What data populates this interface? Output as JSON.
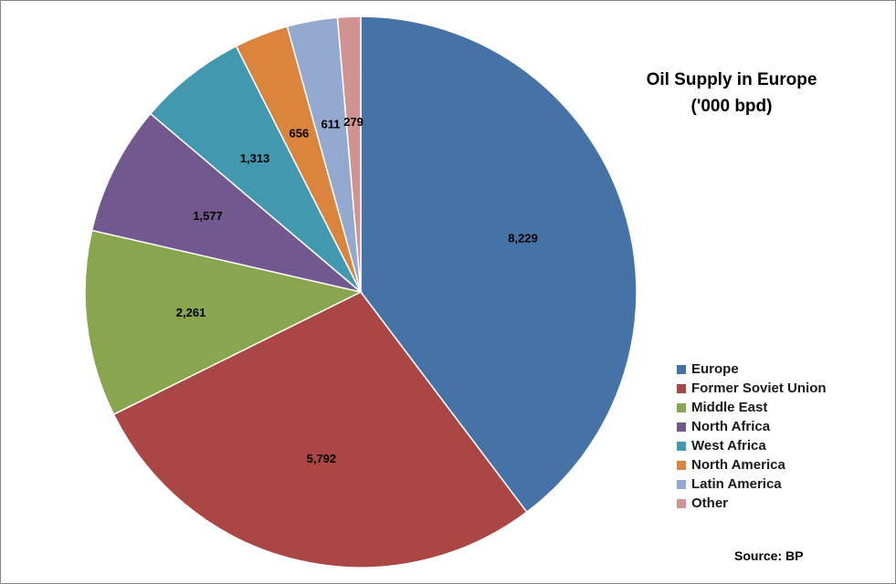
{
  "chart_data": {
    "type": "pie",
    "title": "Oil Supply in Europe",
    "subtitle": "('000 bpd)",
    "source": "Source: BP",
    "legend_position": "right",
    "categories": [
      "Europe",
      "Former Soviet Union",
      "Middle East",
      "North Africa",
      "West Africa",
      "North America",
      "Latin America",
      "Other"
    ],
    "values": [
      8229,
      5792,
      2261,
      1577,
      1313,
      656,
      611,
      279
    ],
    "value_labels": [
      "8,229",
      "5,792",
      "2,261",
      "1,577",
      "1,313",
      "656",
      "611",
      "279"
    ],
    "colors": [
      "#4572A7",
      "#AA4643",
      "#89A54E",
      "#71588F",
      "#4198AF",
      "#DB843D",
      "#93A9CF",
      "#D19392"
    ]
  }
}
